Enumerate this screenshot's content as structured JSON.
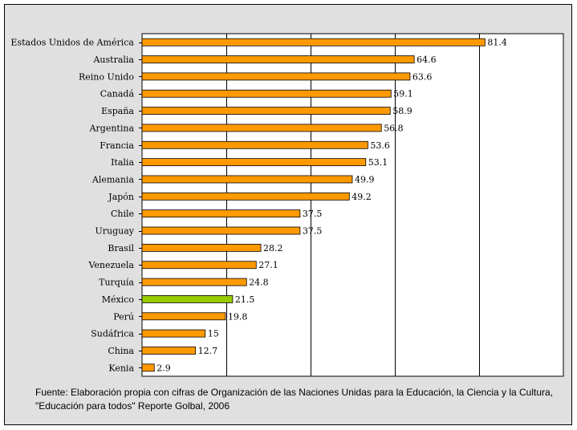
{
  "chart_data": {
    "type": "bar",
    "orientation": "horizontal",
    "categories": [
      "Estados Unidos de América",
      "Australia",
      "Reino Unido",
      "Canadá",
      "España",
      "Argentina",
      "Francia",
      "Italia",
      "Alemania",
      "Japón",
      "Chile",
      "Uruguay",
      "Brasil",
      "Venezuela",
      "Turquía",
      "México",
      "Perú",
      "Sudáfrica",
      "China",
      "Kenia"
    ],
    "values": [
      81.4,
      64.6,
      63.6,
      59.1,
      58.9,
      56.8,
      53.6,
      53.1,
      49.9,
      49.2,
      37.5,
      37.5,
      28.2,
      27.1,
      24.8,
      21.5,
      19.8,
      15,
      12.7,
      2.9
    ],
    "value_labels": [
      "81.4",
      "64.6",
      "63.6",
      "59.1",
      "58.9",
      "56.8",
      "53.6",
      "53.1",
      "49.9",
      "49.2",
      "37.5",
      "37.5",
      "28.2",
      "27.1",
      "24.8",
      "21.5",
      "19.8",
      "15",
      "12.7",
      "2.9"
    ],
    "highlight_category": "México",
    "xlim": [
      0,
      100
    ],
    "grid": true,
    "colors": {
      "bar": "#ff9900",
      "highlight": "#99cc00",
      "background": "#e0e0e0",
      "plot_background": "#ffffff"
    }
  },
  "source_note": "Fuente: Elaboración propia con cifras de Organización de las Naciones Unidas para la Educación, la Ciencia y la Cultura, \"Educación para todos\" Reporte Golbal, 2006"
}
